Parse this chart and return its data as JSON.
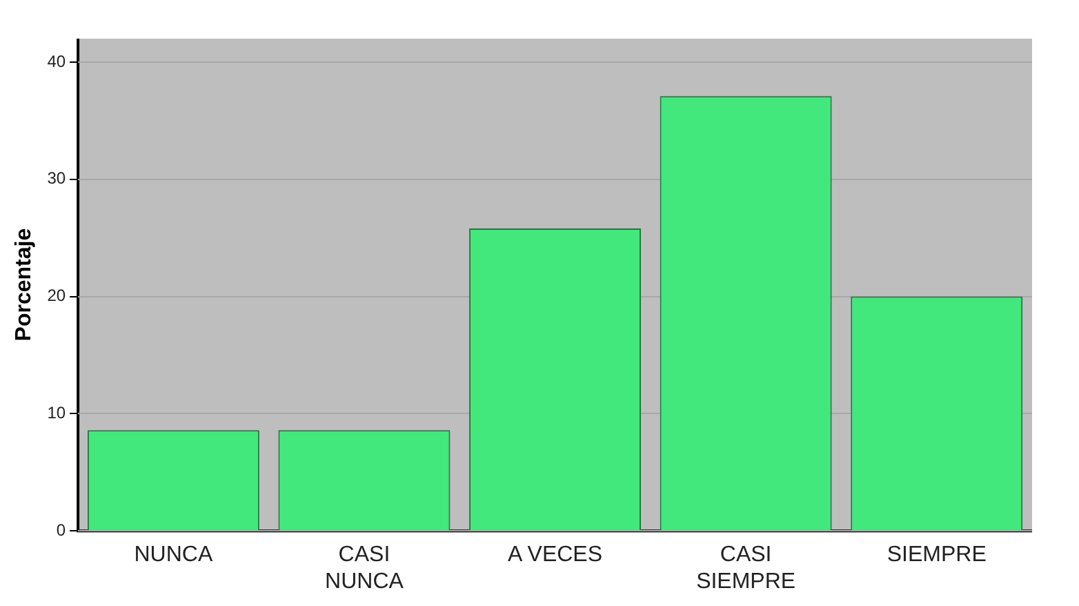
{
  "chart_data": {
    "type": "bar",
    "ylabel": "Porcentaje",
    "categories": [
      "NUNCA",
      "CASI NUNCA",
      "A VECES",
      "CASI SIEMPRE",
      "SIEMPRE"
    ],
    "values": [
      8.6,
      8.6,
      25.8,
      37.1,
      20.0
    ],
    "color": "#42e87c",
    "ylim": [
      0,
      42
    ],
    "yticks": [
      0,
      10,
      20,
      30,
      40
    ],
    "grid": "y"
  }
}
